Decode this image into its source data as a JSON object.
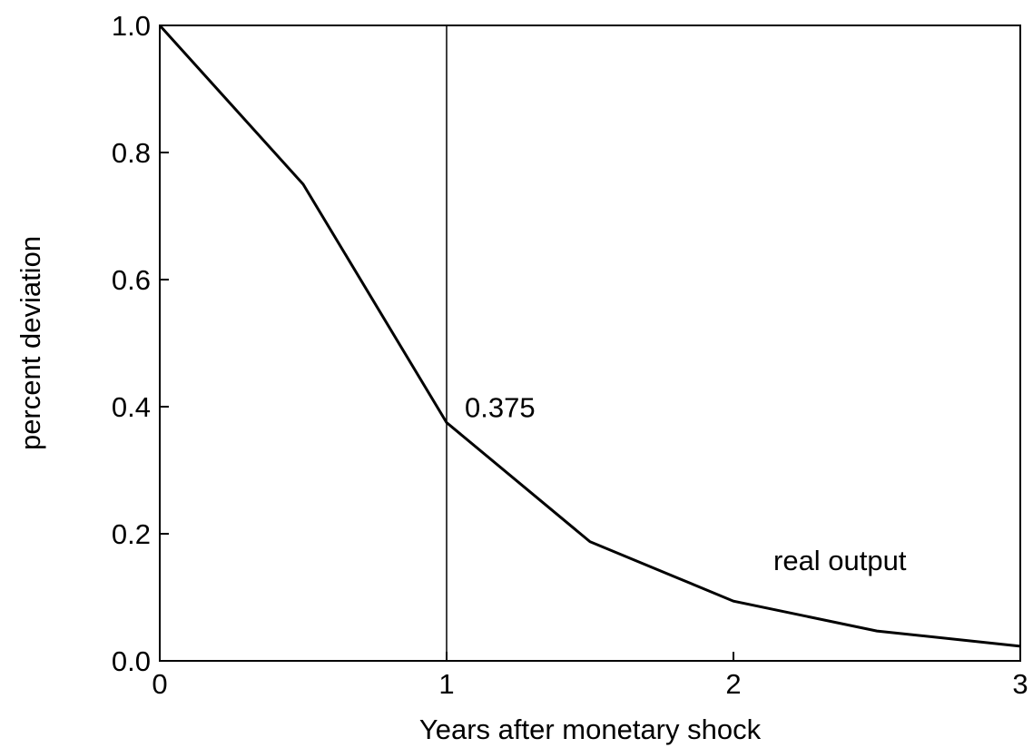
{
  "chart_data": {
    "type": "line",
    "xlabel": "Years after monetary shock",
    "ylabel": "percent deviation",
    "x": [
      0,
      0.5,
      1,
      1.5,
      2,
      2.5,
      3
    ],
    "series": [
      {
        "name": "real output",
        "color": "#000000",
        "values": [
          1.0,
          0.75,
          0.375,
          0.1875,
          0.094,
          0.047,
          0.023
        ]
      }
    ],
    "xlim": [
      0,
      3
    ],
    "xticks": [
      0,
      1,
      2,
      3
    ],
    "ylim": [
      0,
      1
    ],
    "yticks": [
      {
        "value": 0,
        "label": "0.0"
      },
      0.2,
      0.4,
      0.6,
      0.8,
      {
        "value": 1,
        "label": "1.0"
      }
    ],
    "vline": 1,
    "annotations": [
      {
        "text": "0.375",
        "x": 1,
        "y": 0.375
      }
    ],
    "grid": false
  }
}
